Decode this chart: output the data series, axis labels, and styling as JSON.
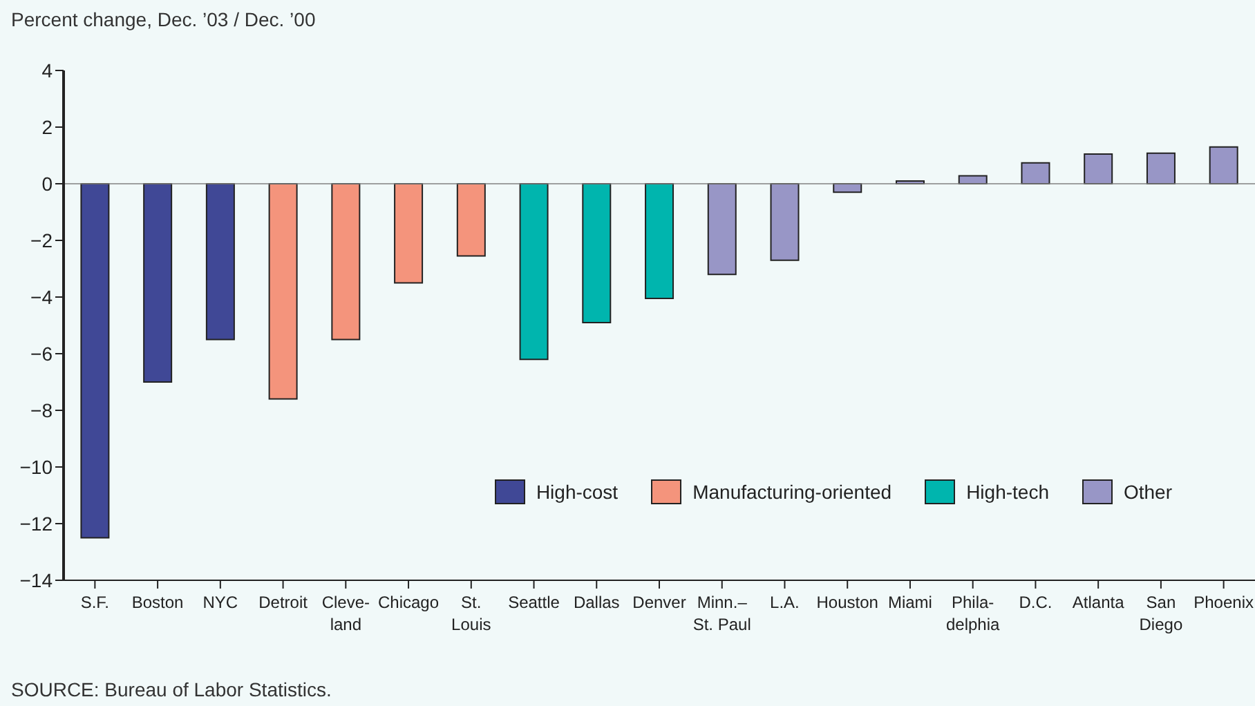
{
  "chart_data": {
    "type": "bar",
    "ylabel": "Percent change, Dec. ’03 / Dec. ’00",
    "categories": [
      "S.F.",
      "Boston",
      "NYC",
      "Detroit",
      "Cleve-\nland",
      "Chicago",
      "St.\nLouis",
      "Seattle",
      "Dallas",
      "Denver",
      "Minn.–\nSt. Paul",
      "L.A.",
      "Houston",
      "Miami",
      "Phila-\ndelphia",
      "D.C.",
      "Atlanta",
      "San\nDiego",
      "Phoenix"
    ],
    "stacked": true,
    "series": [
      {
        "name": "High-cost",
        "color": "#404896",
        "values": [
          -12.5,
          -7.0,
          -5.5,
          null,
          null,
          null,
          null,
          null,
          null,
          null,
          null,
          null,
          null,
          null,
          null,
          null,
          null,
          null,
          null
        ]
      },
      {
        "name": "Manufacturing-oriented",
        "color": "#f4947c",
        "values": [
          null,
          null,
          null,
          -7.6,
          -5.5,
          -3.5,
          -2.55,
          null,
          null,
          null,
          null,
          null,
          null,
          null,
          null,
          null,
          null,
          null,
          null
        ]
      },
      {
        "name": "High-tech",
        "color": "#00b5ae",
        "values": [
          null,
          null,
          null,
          null,
          null,
          null,
          null,
          -6.2,
          -4.9,
          -4.05,
          null,
          null,
          null,
          null,
          null,
          null,
          null,
          null,
          null
        ]
      },
      {
        "name": "Other",
        "color": "#9896c6",
        "values": [
          null,
          null,
          null,
          null,
          null,
          null,
          null,
          null,
          null,
          null,
          -3.2,
          -2.7,
          -0.3,
          0.1,
          0.28,
          0.74,
          1.05,
          1.08,
          1.3
        ]
      }
    ],
    "ylim": [
      -14,
      4
    ],
    "yticks": [
      -14,
      -12,
      -10,
      -8,
      -6,
      -4,
      -2,
      0,
      2,
      4
    ],
    "ref_lines": [
      {
        "axis": "y",
        "value": 0,
        "color": "#808080"
      }
    ],
    "grid": false,
    "legend": "bottom right",
    "annotations": [
      "SOURCE: Bureau of Labor Statistics."
    ]
  }
}
